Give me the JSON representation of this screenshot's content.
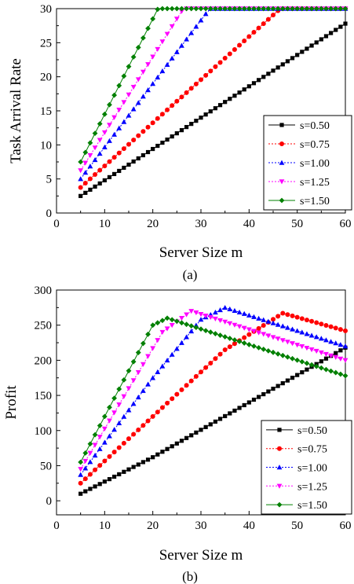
{
  "chart_data": [
    {
      "type": "line",
      "panel_label": "(a)",
      "xlabel": "Server Size m",
      "ylabel": "Task Arrival Rate",
      "xlim": [
        0,
        60
      ],
      "ylim": [
        0,
        30
      ],
      "x_ticks": [
        0,
        10,
        20,
        30,
        40,
        50,
        60
      ],
      "y_ticks": [
        0,
        5,
        10,
        15,
        20,
        25,
        30
      ],
      "legend_position": "bottom-right",
      "x_range": [
        5,
        60
      ],
      "series": [
        {
          "name": "s=0.50",
          "color": "#000000",
          "marker": "square",
          "line_style": "solid",
          "points": [
            [
              5,
              2.5
            ],
            [
              60,
              27.8
            ]
          ],
          "cap": 30
        },
        {
          "name": "s=0.75",
          "color": "#ff0000",
          "marker": "circle",
          "line_style": "dotted",
          "points": [
            [
              5,
              3.75
            ],
            [
              40,
              25.9
            ]
          ],
          "cap": 30
        },
        {
          "name": "s=1.00",
          "color": "#0000ff",
          "marker": "triangle-up",
          "line_style": "dotted",
          "points": [
            [
              5,
              5
            ],
            [
              30,
              28.3
            ]
          ],
          "cap": 30
        },
        {
          "name": "s=1.25",
          "color": "#ff00ff",
          "marker": "triangle-down",
          "line_style": "dotted",
          "points": [
            [
              5,
              6.25
            ],
            [
              25,
              28.5
            ]
          ],
          "cap": 30
        },
        {
          "name": "s=1.50",
          "color": "#008000",
          "marker": "diamond",
          "line_style": "solid",
          "points": [
            [
              5,
              7.5
            ],
            [
              20,
              28.5
            ]
          ],
          "cap": 30
        }
      ]
    },
    {
      "type": "line",
      "panel_label": "(b)",
      "xlabel": "Server Size m",
      "ylabel": "Profit",
      "xlim": [
        0,
        60
      ],
      "ylim": [
        -20,
        300
      ],
      "x_ticks": [
        0,
        10,
        20,
        30,
        40,
        50,
        60
      ],
      "y_ticks": [
        0,
        50,
        100,
        150,
        200,
        250,
        300
      ],
      "legend_position": "bottom-right",
      "x_range": [
        5,
        60
      ],
      "series": [
        {
          "name": "s=0.50",
          "color": "#000000",
          "marker": "square",
          "line_style": "solid",
          "points": [
            [
              5,
              10
            ],
            [
              20,
              62
            ],
            [
              40,
              140
            ],
            [
              60,
              218
            ]
          ]
        },
        {
          "name": "s=0.75",
          "color": "#ff0000",
          "marker": "circle",
          "line_style": "dotted",
          "points": [
            [
              5,
              25
            ],
            [
              20,
              120
            ],
            [
              35,
              215
            ],
            [
              47,
              267
            ],
            [
              60,
              242
            ]
          ]
        },
        {
          "name": "s=1.00",
          "color": "#0000ff",
          "marker": "triangle-up",
          "line_style": "dotted",
          "points": [
            [
              5,
              37
            ],
            [
              20,
              175
            ],
            [
              30,
              258
            ],
            [
              35,
              275
            ],
            [
              60,
              220
            ]
          ]
        },
        {
          "name": "s=1.25",
          "color": "#ff00ff",
          "marker": "triangle-down",
          "line_style": "dotted",
          "points": [
            [
              5,
              45
            ],
            [
              15,
              160
            ],
            [
              22,
              240
            ],
            [
              28,
              270
            ],
            [
              60,
              200
            ]
          ]
        },
        {
          "name": "s=1.50",
          "color": "#008000",
          "marker": "diamond",
          "line_style": "solid",
          "points": [
            [
              5,
              55
            ],
            [
              15,
              185
            ],
            [
              20,
              250
            ],
            [
              23,
              260
            ],
            [
              60,
              178
            ]
          ]
        }
      ]
    }
  ]
}
